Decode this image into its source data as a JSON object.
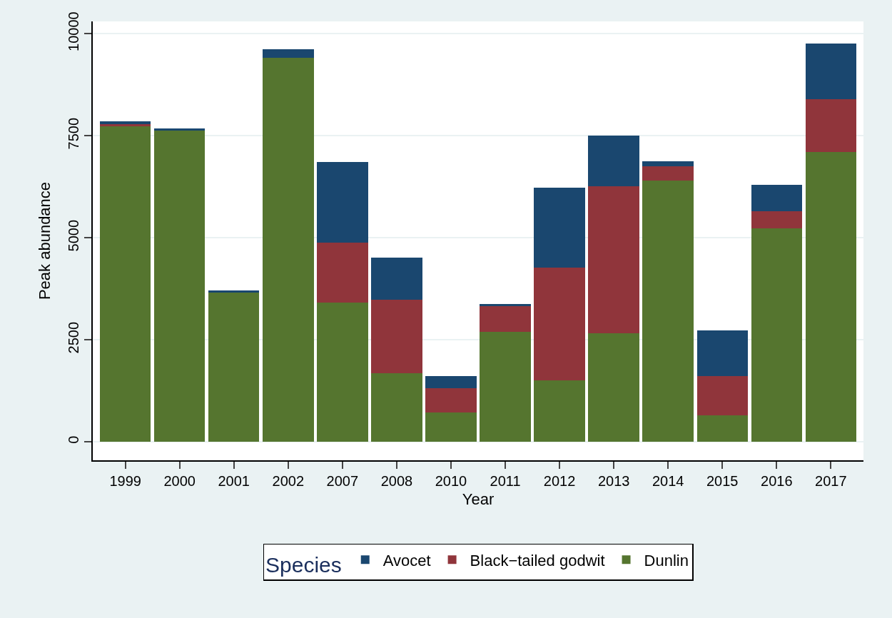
{
  "chart_data": {
    "type": "bar",
    "stacked": true,
    "xlabel": "Year",
    "ylabel": "Peak abundance",
    "legend_title": "Species",
    "categories": [
      "1999",
      "2000",
      "2001",
      "2002",
      "2007",
      "2008",
      "2010",
      "2011",
      "2012",
      "2013",
      "2014",
      "2015",
      "2016",
      "2017"
    ],
    "series": [
      {
        "name": "Dunlin",
        "color": "#55752f",
        "values": [
          7730,
          7630,
          3660,
          9410,
          3420,
          1680,
          715,
          2690,
          1515,
          2660,
          6400,
          645,
          5230,
          7105
        ]
      },
      {
        "name": "Black−tailed godwit",
        "color": "#90353b",
        "values": [
          50,
          0,
          0,
          0,
          1455,
          1800,
          605,
          640,
          2760,
          3600,
          355,
          965,
          415,
          1285
        ]
      },
      {
        "name": "Avocet",
        "color": "#1a476f",
        "values": [
          70,
          50,
          45,
          210,
          1985,
          1035,
          300,
          50,
          1945,
          1240,
          115,
          1115,
          645,
          1365
        ]
      }
    ],
    "ylim": [
      -450,
      10300
    ],
    "yticks": [
      0,
      2500,
      5000,
      7500,
      10000
    ],
    "grid": "y",
    "legend": "bottom"
  }
}
